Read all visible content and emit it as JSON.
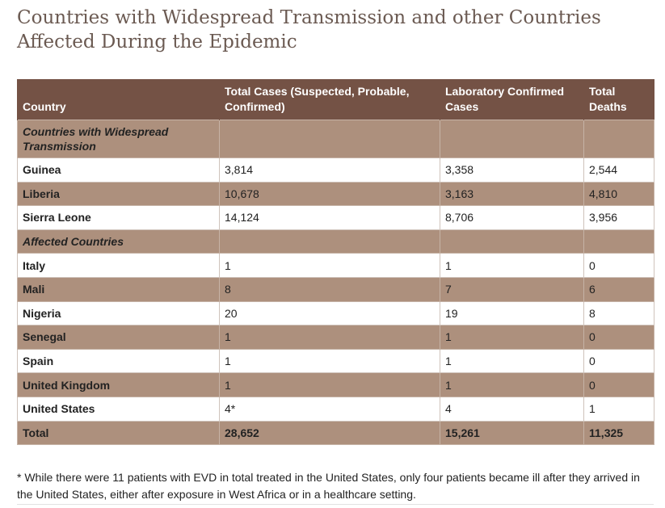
{
  "title": "Countries with Widespread Transmission and other Countries Affected During the Epidemic",
  "columns": [
    "Country",
    "Total Cases (Suspected, Probable, Confirmed)",
    "Laboratory Confirmed Cases",
    "Total Deaths"
  ],
  "sections": [
    {
      "label": "Countries with Widespread Transmission",
      "rows": [
        {
          "country": "Guinea",
          "total_cases": "3,814",
          "lab_confirmed": "3,358",
          "deaths": "2,544"
        },
        {
          "country": "Liberia",
          "total_cases": "10,678",
          "lab_confirmed": "3,163",
          "deaths": "4,810"
        },
        {
          "country": "Sierra Leone",
          "total_cases": "14,124",
          "lab_confirmed": "8,706",
          "deaths": "3,956"
        }
      ]
    },
    {
      "label": "Affected Countries",
      "rows": [
        {
          "country": "Italy",
          "total_cases": "1",
          "lab_confirmed": "1",
          "deaths": "0"
        },
        {
          "country": "Mali",
          "total_cases": "8",
          "lab_confirmed": "7",
          "deaths": "6"
        },
        {
          "country": "Nigeria",
          "total_cases": "20",
          "lab_confirmed": "19",
          "deaths": "8"
        },
        {
          "country": "Senegal",
          "total_cases": "1",
          "lab_confirmed": "1",
          "deaths": "0"
        },
        {
          "country": "Spain",
          "total_cases": "1",
          "lab_confirmed": "1",
          "deaths": "0"
        },
        {
          "country": "United Kingdom",
          "total_cases": "1",
          "lab_confirmed": "1",
          "deaths": "0"
        },
        {
          "country": "United States",
          "total_cases": "4*",
          "lab_confirmed": "4",
          "deaths": "1"
        }
      ]
    }
  ],
  "total": {
    "label": "Total",
    "total_cases": "28,652",
    "lab_confirmed": "15,261",
    "deaths": "11,325"
  },
  "footnote": "* While there were 11 patients with EVD in total treated in the United States, only four patients became ill after they arrived in the United States, either after exposure in West Africa or in a healthcare setting.",
  "colors": {
    "header_bg": "#745245",
    "alt_row_bg": "#ad907d",
    "title_color": "#6b5a52"
  }
}
